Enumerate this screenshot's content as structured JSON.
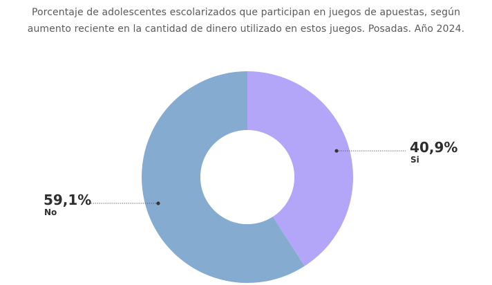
{
  "header": {
    "subtitle_line1": "Porcentaje de adolescentes escolarizados que participan en juegos de apuestas, según",
    "subtitle_line2": "aumento reciente en la cantidad de dinero utilizado en estos juegos. Posadas. Año 2024."
  },
  "chart_data": {
    "type": "pie",
    "donut": true,
    "categories": [
      "Si",
      "No"
    ],
    "values": [
      40.9,
      59.1
    ],
    "value_labels": [
      "40,9%",
      "59,1%"
    ],
    "colors": [
      "#b3a6f9",
      "#86abd1"
    ],
    "title": "Porcentaje de adolescentes escolarizados que participan en juegos de apuestas, según aumento reciente en la cantidad de dinero utilizado en estos juegos. Posadas. Año 2024.",
    "legend": "none",
    "start_angle": "top, clockwise"
  }
}
